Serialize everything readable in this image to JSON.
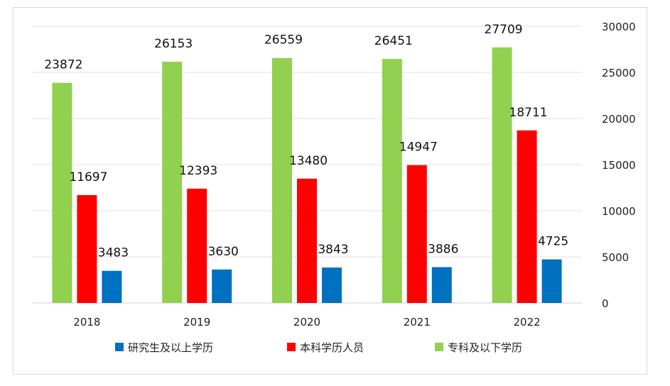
{
  "chart_data": {
    "type": "bar",
    "categories": [
      "2018",
      "2019",
      "2020",
      "2021",
      "2022"
    ],
    "series": [
      {
        "name": "专科及以下学历",
        "color": "#92d050",
        "values": [
          23872,
          26153,
          26559,
          26451,
          27709
        ]
      },
      {
        "name": "本科学历人员",
        "color": "#ff0000",
        "values": [
          11697,
          12393,
          13480,
          14947,
          18711
        ]
      },
      {
        "name": "研究生及以上学历",
        "color": "#0070c0",
        "values": [
          3483,
          3630,
          3843,
          3886,
          4725
        ]
      }
    ],
    "legend_order": [
      2,
      1,
      0
    ],
    "ylim": [
      0,
      30000
    ],
    "y_ticks": [
      "0",
      "5000",
      "10000",
      "15000",
      "20000",
      "25000",
      "30000"
    ],
    "y_axis_side": "right",
    "grid": true,
    "legend_position": "bottom",
    "data_labels": true
  }
}
